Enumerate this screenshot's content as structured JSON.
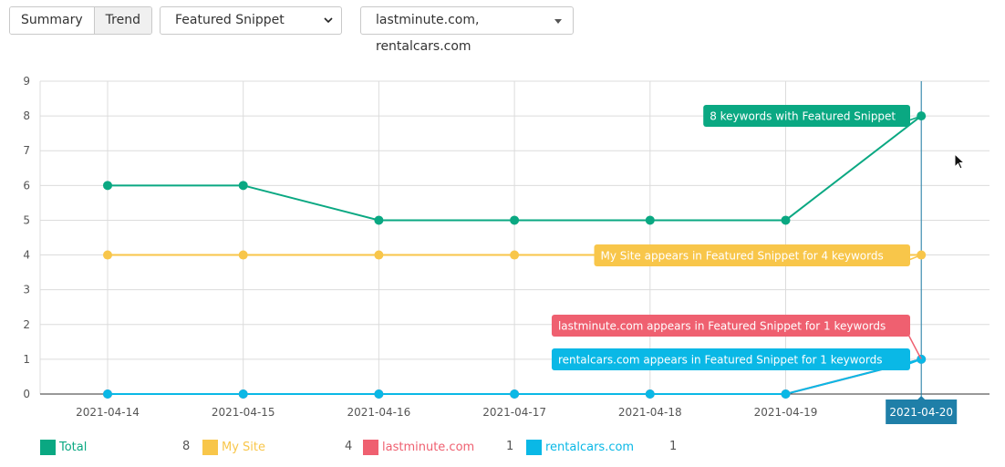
{
  "toolbar": {
    "view_tabs": [
      {
        "label": "Summary",
        "active": false
      },
      {
        "label": "Trend",
        "active": true
      }
    ],
    "metric_select": {
      "value": "Featured Snippet",
      "icon": "chevron-down-icon"
    },
    "sites_select": {
      "value": "lastminute.com, rentalcars.com",
      "icon": "caret-down-icon"
    }
  },
  "chart_data": {
    "type": "line",
    "categories": [
      "2021-04-14",
      "2021-04-15",
      "2021-04-16",
      "2021-04-17",
      "2021-04-18",
      "2021-04-19",
      "2021-04-20"
    ],
    "ylim": [
      0,
      9
    ],
    "yticks": [
      0,
      1,
      2,
      3,
      4,
      5,
      6,
      7,
      8,
      9
    ],
    "grid": true,
    "hovered_category": "2021-04-20",
    "series": [
      {
        "name": "Total",
        "color": "#0aa882",
        "values": [
          6,
          6,
          5,
          5,
          5,
          5,
          8
        ],
        "tooltip": "8 keywords with Featured Snippet",
        "legend_value": "8"
      },
      {
        "name": "My Site",
        "color": "#f8c64a",
        "values": [
          4,
          4,
          4,
          4,
          4,
          4,
          4
        ],
        "tooltip": "My Site appears in Featured Snippet for 4 keywords",
        "legend_value": "4"
      },
      {
        "name": "lastminute.com",
        "color": "#ef6070",
        "values": [
          0,
          0,
          0,
          0,
          0,
          0,
          1
        ],
        "tooltip": "lastminute.com appears in Featured Snippet for 1 keywords",
        "legend_value": "1"
      },
      {
        "name": "rentalcars.com",
        "color": "#0ab8e6",
        "values": [
          0,
          0,
          0,
          0,
          0,
          0,
          1
        ],
        "tooltip": "rentalcars.com appears in Featured Snippet for 1 keywords",
        "legend_value": "1"
      }
    ],
    "hover_line_color": "#1f7fa8",
    "hover_label_bg": "#1f7fa8"
  }
}
